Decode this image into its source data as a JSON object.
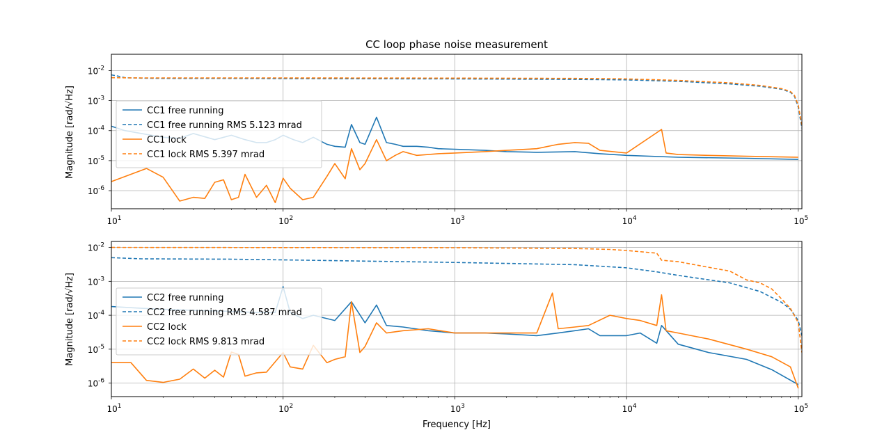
{
  "figure": {
    "title": "CC loop phase noise measurement",
    "xlabel": "Frequency [Hz]",
    "ylabel": "Magnitude [rad/√Hz]"
  },
  "colors": {
    "blue": "#1f77b4",
    "orange": "#ff7f0e",
    "grid": "#b0b0b0"
  },
  "chart_data": [
    {
      "type": "line",
      "title": "CC loop phase noise measurement",
      "xlabel": "",
      "ylabel": "Magnitude [rad/√Hz]",
      "xscale": "log",
      "yscale": "log",
      "xlim": [
        10,
        105000
      ],
      "ylim": [
        2.5e-07,
        0.035
      ],
      "grid": true,
      "legend_position": "center-left",
      "x_ticks": [
        10,
        100,
        1000,
        10000,
        100000
      ],
      "y_ticks": [
        1e-06,
        1e-05,
        0.0001,
        0.001,
        0.01
      ],
      "series": [
        {
          "name": "CC1 free running",
          "color": "#1f77b4",
          "style": "solid",
          "x": [
            10,
            12,
            15,
            20,
            25,
            30,
            40,
            50,
            60,
            70,
            80,
            90,
            100,
            115,
            130,
            150,
            180,
            200,
            230,
            250,
            280,
            300,
            350,
            400,
            450,
            500,
            600,
            700,
            800,
            1000,
            1500,
            2000,
            3000,
            5000,
            7000,
            10000,
            20000,
            50000,
            100000
          ],
          "y": [
            0.00014,
            0.0001,
            8e-05,
            6e-05,
            5.5e-05,
            8e-05,
            5e-05,
            7e-05,
            5e-05,
            4e-05,
            4e-05,
            5e-05,
            7e-05,
            5e-05,
            4e-05,
            6e-05,
            3.5e-05,
            3e-05,
            2.8e-05,
            0.00016,
            4e-05,
            3.5e-05,
            0.00028,
            4e-05,
            3.5e-05,
            3e-05,
            3e-05,
            2.8e-05,
            2.5e-05,
            2.4e-05,
            2.2e-05,
            2e-05,
            1.9e-05,
            2e-05,
            1.7e-05,
            1.5e-05,
            1.3e-05,
            1.2e-05,
            1.1e-05
          ]
        },
        {
          "name": "CC1 free running RMS 5.123 mrad",
          "color": "#1f77b4",
          "style": "dashed",
          "x": [
            10,
            11,
            12,
            15,
            20,
            50,
            100,
            1000,
            5000,
            10000,
            20000,
            40000,
            60000,
            80000,
            90000,
            95000,
            100000,
            105000
          ],
          "y": [
            0.0072,
            0.0065,
            0.0058,
            0.0056,
            0.0055,
            0.0055,
            0.0054,
            0.0053,
            0.0051,
            0.0049,
            0.0044,
            0.0036,
            0.003,
            0.0024,
            0.0019,
            0.0014,
            0.0006,
            0.00012
          ]
        },
        {
          "name": "CC1 lock",
          "color": "#ff7f0e",
          "style": "solid",
          "x": [
            10,
            16,
            20,
            25,
            30,
            35,
            40,
            45,
            50,
            55,
            60,
            70,
            80,
            90,
            100,
            110,
            130,
            150,
            180,
            200,
            230,
            250,
            280,
            300,
            350,
            400,
            450,
            500,
            600,
            700,
            800,
            1000,
            1500,
            2000,
            3000,
            4000,
            5000,
            6000,
            7000,
            10000,
            16000,
            17000,
            20000,
            30000,
            50000,
            100000
          ],
          "y": [
            2e-06,
            5.5e-06,
            2.8e-06,
            4.5e-07,
            6e-07,
            5.5e-07,
            1.9e-06,
            2.3e-06,
            5e-07,
            6e-07,
            3.5e-06,
            6e-07,
            1.5e-06,
            4e-07,
            2.6e-06,
            1.2e-06,
            5e-07,
            6e-07,
            3e-06,
            8e-06,
            2.5e-06,
            2.5e-05,
            5e-06,
            8e-06,
            5e-05,
            1e-05,
            1.5e-05,
            2e-05,
            1.5e-05,
            1.6e-05,
            1.7e-05,
            1.8e-05,
            2e-05,
            2.2e-05,
            2.5e-05,
            3.5e-05,
            4e-05,
            3.8e-05,
            2.2e-05,
            1.8e-05,
            0.00011,
            1.8e-05,
            1.6e-05,
            1.5e-05,
            1.4e-05,
            1.3e-05
          ]
        },
        {
          "name": "CC1 lock RMS 5.397 mrad",
          "color": "#ff7f0e",
          "style": "dashed",
          "x": [
            10,
            15,
            20,
            50,
            100,
            1000,
            5000,
            10000,
            20000,
            40000,
            60000,
            80000,
            90000,
            95000,
            100000,
            105000
          ],
          "y": [
            0.0058,
            0.0057,
            0.0057,
            0.0057,
            0.0057,
            0.0056,
            0.0055,
            0.0053,
            0.0047,
            0.0039,
            0.0032,
            0.0025,
            0.002,
            0.0015,
            0.0007,
            0.00015
          ]
        }
      ]
    },
    {
      "type": "line",
      "title": "",
      "xlabel": "Frequency [Hz]",
      "ylabel": "Magnitude [rad/√Hz]",
      "xscale": "log",
      "yscale": "log",
      "xlim": [
        10,
        105000
      ],
      "ylim": [
        4e-07,
        0.015
      ],
      "grid": true,
      "legend_position": "center-left",
      "x_ticks": [
        10,
        100,
        1000,
        10000,
        100000
      ],
      "y_ticks": [
        1e-06,
        1e-05,
        0.0001,
        0.001,
        0.01
      ],
      "series": [
        {
          "name": "CC2 free running",
          "color": "#1f77b4",
          "style": "solid",
          "x": [
            10,
            15,
            20,
            30,
            50,
            70,
            90,
            100,
            110,
            130,
            150,
            200,
            250,
            300,
            350,
            400,
            500,
            700,
            1000,
            1500,
            2000,
            3000,
            4000,
            5000,
            6000,
            7000,
            10000,
            12000,
            15000,
            16000,
            20000,
            30000,
            50000,
            70000,
            100000
          ],
          "y": [
            0.00018,
            0.00016,
            0.00015,
            0.00014,
            0.00013,
            0.00012,
            0.00012,
            0.0007,
            0.00012,
            8e-05,
            0.0001,
            7e-05,
            0.00025,
            6e-05,
            0.0002,
            5e-05,
            4.5e-05,
            3.5e-05,
            3e-05,
            3e-05,
            2.8e-05,
            2.5e-05,
            3e-05,
            3.5e-05,
            4e-05,
            2.5e-05,
            2.5e-05,
            3e-05,
            1.5e-05,
            5e-05,
            1.4e-05,
            8e-06,
            5e-06,
            2.5e-06,
            9e-07
          ]
        },
        {
          "name": "CC2 free running RMS 4.587 mrad",
          "color": "#1f77b4",
          "style": "dashed",
          "x": [
            10,
            15,
            50,
            100,
            1000,
            5000,
            10000,
            15000,
            20000,
            40000,
            60000,
            80000,
            90000,
            100000,
            105000
          ],
          "y": [
            0.005,
            0.0046,
            0.0045,
            0.0043,
            0.0036,
            0.0031,
            0.0025,
            0.0019,
            0.0015,
            0.0009,
            0.0005,
            0.00024,
            0.00015,
            7e-05,
            2.5e-05
          ]
        },
        {
          "name": "CC2 lock",
          "color": "#ff7f0e",
          "style": "solid",
          "x": [
            10,
            13,
            16,
            20,
            25,
            30,
            35,
            40,
            45,
            50,
            55,
            60,
            70,
            80,
            100,
            110,
            130,
            150,
            180,
            200,
            230,
            250,
            280,
            300,
            350,
            400,
            500,
            700,
            1000,
            2000,
            3000,
            3700,
            4000,
            5000,
            6000,
            8000,
            10000,
            12000,
            15000,
            16000,
            17000,
            20000,
            30000,
            50000,
            70000,
            90000,
            100000
          ],
          "y": [
            4e-06,
            4e-06,
            1.2e-06,
            1.05e-06,
            1.3e-06,
            2.6e-06,
            1.4e-06,
            2.4e-06,
            1.5e-06,
            8.2e-06,
            7e-06,
            1.6e-06,
            2e-06,
            2.1e-06,
            8e-06,
            3e-06,
            2.6e-06,
            1.3e-05,
            4e-06,
            5e-06,
            6e-06,
            0.00025,
            8e-06,
            1.2e-05,
            6e-05,
            3e-05,
            3.5e-05,
            4e-05,
            3e-05,
            3e-05,
            3e-05,
            0.00045,
            4e-05,
            4.5e-05,
            5e-05,
            0.0001,
            8e-05,
            7e-05,
            5e-05,
            0.0004,
            3.5e-05,
            3e-05,
            2e-05,
            1e-05,
            6e-06,
            3e-06,
            7e-07
          ]
        },
        {
          "name": "CC2 lock RMS 9.813 mrad",
          "color": "#ff7f0e",
          "style": "dashed",
          "x": [
            10,
            100,
            1000,
            5000,
            8000,
            10000,
            13000,
            15000,
            16000,
            20000,
            30000,
            40000,
            50000,
            60000,
            70000,
            80000,
            90000,
            100000,
            105000
          ],
          "y": [
            0.01,
            0.0099,
            0.0098,
            0.0093,
            0.0087,
            0.0081,
            0.0072,
            0.0068,
            0.0042,
            0.0038,
            0.0026,
            0.002,
            0.0011,
            0.0009,
            0.0006,
            0.0003,
            0.00016,
            6e-05,
            8e-06
          ]
        }
      ]
    }
  ]
}
